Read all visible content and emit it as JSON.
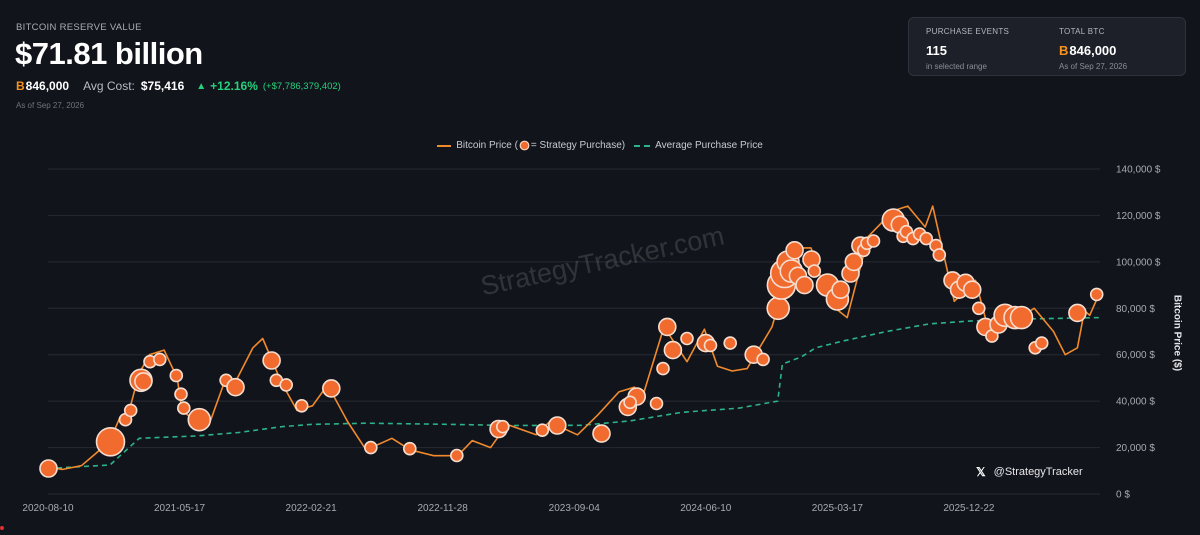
{
  "header": {
    "label": "BITCOIN RESERVE VALUE",
    "value": "$71.81 billion",
    "btc_symbol": "B",
    "btc_amount": "846,000",
    "avg_cost_label": "Avg Cost:",
    "avg_cost": "$75,416",
    "change_pct": "+12.16%",
    "change_amount": "(+$7,786,379,402)",
    "as_of": "As of Sep 27, 2026"
  },
  "card": {
    "events_label": "PURCHASE EVENTS",
    "events_value": "115",
    "events_sub": "in selected range",
    "total_label": "TOTAL BTC",
    "total_value": "846,000",
    "total_sub": "As of Sep 27, 2026"
  },
  "legend": {
    "price": "Bitcoin Price (",
    "price_suffix": " = Strategy Purchase)",
    "avg": "Average Purchase Price"
  },
  "watermark": "StrategyTracker.com",
  "handle": "@StrategyTracker",
  "colors": {
    "price": "#f08a2c",
    "bubble": "#f26b2e",
    "avg": "#2bb389",
    "up": "#26d07c",
    "btc": "#f7931a"
  },
  "chart_data": {
    "type": "line",
    "ylabel": "Bitcoin Price ($)",
    "ylim": [
      0,
      140000
    ],
    "yticks": [
      0,
      20000,
      40000,
      60000,
      80000,
      100000,
      120000,
      140000
    ],
    "ytick_labels": [
      "0 $",
      "20,000 $",
      "40,000 $",
      "60,000 $",
      "80,000 $",
      "100,000 $",
      "120,000 $",
      "140,000 $"
    ],
    "xlim": [
      "2020-08-10",
      "2026-09-27"
    ],
    "xticks": [
      "2020-08-10",
      "2021-05-17",
      "2022-02-21",
      "2022-11-28",
      "2023-09-04",
      "2024-06-10",
      "2025-03-17",
      "2025-12-22"
    ],
    "series": [
      {
        "name": "Bitcoin Price",
        "points": [
          [
            "2020-08-10",
            11500
          ],
          [
            "2020-09-10",
            10600
          ],
          [
            "2020-10-20",
            12200
          ],
          [
            "2020-11-20",
            17500
          ],
          [
            "2020-12-20",
            23000
          ],
          [
            "2021-01-10",
            33000
          ],
          [
            "2021-01-30",
            36000
          ],
          [
            "2021-02-20",
            52000
          ],
          [
            "2021-03-14",
            60000
          ],
          [
            "2021-04-14",
            62000
          ],
          [
            "2021-05-12",
            50000
          ],
          [
            "2021-05-22",
            36000
          ],
          [
            "2021-06-22",
            31000
          ],
          [
            "2021-07-20",
            30500
          ],
          [
            "2021-08-20",
            48000
          ],
          [
            "2021-09-07",
            46000
          ],
          [
            "2021-10-20",
            63000
          ],
          [
            "2021-11-10",
            67000
          ],
          [
            "2021-12-20",
            48000
          ],
          [
            "2022-01-22",
            36000
          ],
          [
            "2022-02-24",
            38000
          ],
          [
            "2022-03-28",
            47000
          ],
          [
            "2022-05-10",
            31000
          ],
          [
            "2022-06-18",
            19000
          ],
          [
            "2022-08-12",
            24000
          ],
          [
            "2022-09-20",
            19000
          ],
          [
            "2022-11-09",
            16500
          ],
          [
            "2022-12-30",
            16500
          ],
          [
            "2023-01-30",
            23000
          ],
          [
            "2023-03-10",
            20000
          ],
          [
            "2023-04-14",
            30000
          ],
          [
            "2023-06-15",
            25500
          ],
          [
            "2023-07-13",
            31000
          ],
          [
            "2023-09-11",
            25500
          ],
          [
            "2023-10-24",
            34000
          ],
          [
            "2023-12-08",
            44000
          ],
          [
            "2024-01-10",
            46000
          ],
          [
            "2024-01-23",
            39000
          ],
          [
            "2024-03-13",
            72000
          ],
          [
            "2024-05-01",
            57000
          ],
          [
            "2024-06-07",
            71000
          ],
          [
            "2024-07-05",
            55000
          ],
          [
            "2024-08-05",
            53000
          ],
          [
            "2024-09-06",
            54000
          ],
          [
            "2024-10-29",
            72000
          ],
          [
            "2024-12-17",
            106000
          ],
          [
            "2025-01-20",
            106000
          ],
          [
            "2025-02-28",
            82000
          ],
          [
            "2025-04-07",
            76000
          ],
          [
            "2025-05-22",
            111000
          ],
          [
            "2025-07-14",
            122000
          ],
          [
            "2025-08-14",
            124000
          ],
          [
            "2025-09-20",
            115000
          ],
          [
            "2025-10-06",
            124000
          ],
          [
            "2025-11-21",
            83000
          ],
          [
            "2026-01-05",
            92000
          ],
          [
            "2026-02-05",
            68000
          ],
          [
            "2026-04-01",
            75000
          ],
          [
            "2026-05-10",
            80000
          ],
          [
            "2026-06-20",
            70000
          ],
          [
            "2026-07-15",
            60000
          ],
          [
            "2026-08-10",
            63000
          ],
          [
            "2026-08-25",
            79000
          ],
          [
            "2026-09-05",
            77000
          ],
          [
            "2026-09-27",
            87000
          ]
        ]
      },
      {
        "name": "Average Purchase Price",
        "points": [
          [
            "2020-08-10",
            11000
          ],
          [
            "2020-12-20",
            12500
          ],
          [
            "2021-02-20",
            24000
          ],
          [
            "2021-06-20",
            25000
          ],
          [
            "2021-09-20",
            26500
          ],
          [
            "2021-12-20",
            29000
          ],
          [
            "2022-02-21",
            30000
          ],
          [
            "2022-06-20",
            30500
          ],
          [
            "2022-12-20",
            30000
          ],
          [
            "2023-04-20",
            29500
          ],
          [
            "2023-09-20",
            29600
          ],
          [
            "2024-01-01",
            31500
          ],
          [
            "2024-03-10",
            33800
          ],
          [
            "2024-04-20",
            35200
          ],
          [
            "2024-08-20",
            37000
          ],
          [
            "2024-09-30",
            38500
          ],
          [
            "2024-11-10",
            40000
          ],
          [
            "2024-11-20",
            56000
          ],
          [
            "2024-12-30",
            59000
          ],
          [
            "2025-01-30",
            63000
          ],
          [
            "2025-03-31",
            66000
          ],
          [
            "2025-06-30",
            70000
          ],
          [
            "2025-09-30",
            73300
          ],
          [
            "2025-12-22",
            74500
          ],
          [
            "2026-03-31",
            75300
          ],
          [
            "2026-09-27",
            76000
          ]
        ]
      }
    ],
    "purchases": [
      [
        "2020-08-11",
        11000,
        3
      ],
      [
        "2020-12-21",
        22500,
        5
      ],
      [
        "2021-02-24",
        49000,
        4
      ],
      [
        "2021-03-01",
        48500,
        3
      ],
      [
        "2021-01-22",
        32000,
        2
      ],
      [
        "2021-02-02",
        36000,
        2
      ],
      [
        "2021-03-15",
        57000,
        2
      ],
      [
        "2021-04-05",
        58000,
        2
      ],
      [
        "2021-05-10",
        51000,
        2
      ],
      [
        "2021-05-20",
        43000,
        2
      ],
      [
        "2021-06-28",
        32000,
        4
      ],
      [
        "2021-05-26",
        37000,
        2
      ],
      [
        "2021-08-24",
        49000,
        2
      ],
      [
        "2021-09-13",
        46000,
        3
      ],
      [
        "2021-11-29",
        57500,
        3
      ],
      [
        "2021-12-09",
        49000,
        2
      ],
      [
        "2021-12-30",
        47000,
        2
      ],
      [
        "2022-02-01",
        38000,
        2
      ],
      [
        "2022-04-05",
        45500,
        3
      ],
      [
        "2022-06-28",
        20000,
        2
      ],
      [
        "2022-09-19",
        19500,
        2
      ],
      [
        "2022-12-28",
        16600,
        2
      ],
      [
        "2023-03-27",
        28000,
        3
      ],
      [
        "2023-04-05",
        29000,
        2
      ],
      [
        "2023-07-30",
        29500,
        3
      ],
      [
        "2023-06-28",
        27500,
        2
      ],
      [
        "2023-11-01",
        26000,
        3
      ],
      [
        "2023-12-27",
        37500,
        3
      ],
      [
        "2024-01-15",
        42000,
        3
      ],
      [
        "2024-01-01",
        39500,
        2
      ],
      [
        "2024-02-26",
        39000,
        2
      ],
      [
        "2024-03-11",
        54000,
        2
      ],
      [
        "2024-04-01",
        62000,
        3
      ],
      [
        "2024-03-20",
        72000,
        3
      ],
      [
        "2024-05-01",
        67000,
        2
      ],
      [
        "2024-06-10",
        65000,
        3
      ],
      [
        "2024-06-20",
        64000,
        2
      ],
      [
        "2024-08-01",
        65000,
        2
      ],
      [
        "2024-09-20",
        60000,
        3
      ],
      [
        "2024-10-10",
        58000,
        2
      ],
      [
        "2024-11-11",
        80000,
        4
      ],
      [
        "2024-11-18",
        90000,
        5
      ],
      [
        "2024-11-25",
        95000,
        5
      ],
      [
        "2024-12-02",
        100000,
        4
      ],
      [
        "2024-12-09",
        96000,
        4
      ],
      [
        "2024-12-16",
        105000,
        3
      ],
      [
        "2024-12-23",
        94000,
        3
      ],
      [
        "2025-01-06",
        90000,
        3
      ],
      [
        "2025-01-21",
        101000,
        3
      ],
      [
        "2025-01-27",
        96000,
        2
      ],
      [
        "2025-02-24",
        90000,
        4
      ],
      [
        "2025-03-17",
        84000,
        4
      ],
      [
        "2025-03-24",
        88000,
        3
      ],
      [
        "2025-04-14",
        95000,
        3
      ],
      [
        "2025-04-21",
        100000,
        3
      ],
      [
        "2025-05-05",
        107000,
        3
      ],
      [
        "2025-05-12",
        105000,
        2
      ],
      [
        "2025-05-19",
        108000,
        2
      ],
      [
        "2025-06-02",
        109000,
        2
      ],
      [
        "2025-07-14",
        118000,
        4
      ],
      [
        "2025-07-28",
        116000,
        3
      ],
      [
        "2025-08-04",
        111000,
        2
      ],
      [
        "2025-08-11",
        113000,
        2
      ],
      [
        "2025-08-25",
        110000,
        2
      ],
      [
        "2025-09-08",
        112000,
        2
      ],
      [
        "2025-09-22",
        110000,
        2
      ],
      [
        "2025-10-13",
        107000,
        2
      ],
      [
        "2025-10-20",
        103000,
        2
      ],
      [
        "2025-11-17",
        92000,
        3
      ],
      [
        "2025-12-01",
        88000,
        3
      ],
      [
        "2025-12-15",
        91000,
        3
      ],
      [
        "2025-12-29",
        88000,
        3
      ],
      [
        "2026-01-12",
        80000,
        2
      ],
      [
        "2026-01-26",
        72000,
        3
      ],
      [
        "2026-02-09",
        68000,
        2
      ],
      [
        "2026-02-23",
        73000,
        3
      ],
      [
        "2026-03-09",
        77000,
        4
      ],
      [
        "2026-03-30",
        76000,
        4
      ],
      [
        "2026-04-13",
        76000,
        4
      ],
      [
        "2026-05-12",
        63000,
        2
      ],
      [
        "2026-05-26",
        65000,
        2
      ],
      [
        "2026-08-10",
        78000,
        3
      ],
      [
        "2026-09-20",
        86000,
        2
      ]
    ]
  }
}
